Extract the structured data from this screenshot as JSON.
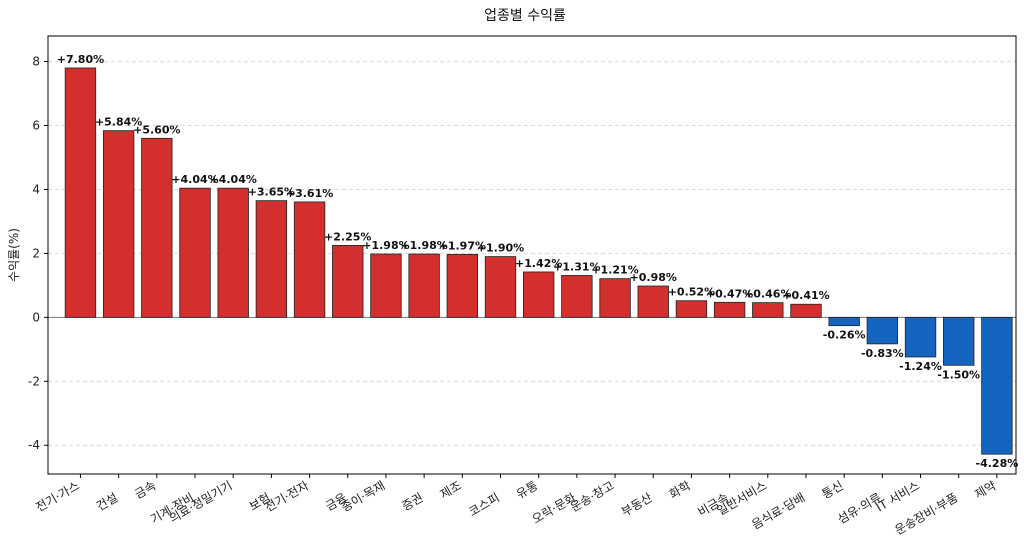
{
  "chart_data": {
    "type": "bar",
    "title": "업종별 수익률",
    "xlabel": "",
    "ylabel": "수익률(%)",
    "ylim": [
      -4.9,
      8.8
    ],
    "yticks": [
      -4,
      -2,
      0,
      2,
      4,
      6,
      8
    ],
    "grid": "horizontal dashed",
    "categories": [
      "전기·가스",
      "건설",
      "금속",
      "기계·장비",
      "의료·정밀기기",
      "보험",
      "전기·전자",
      "금융",
      "종이·목재",
      "증권",
      "제조",
      "코스피",
      "유통",
      "오락·문화",
      "운송·창고",
      "부동산",
      "화학",
      "비금속",
      "일반서비스",
      "음식료·담배",
      "통신",
      "섬유·의류",
      "IT 서비스",
      "운송장비·부품",
      "제약"
    ],
    "values": [
      7.8,
      5.84,
      5.6,
      4.04,
      4.04,
      3.65,
      3.61,
      2.25,
      1.98,
      1.98,
      1.97,
      1.9,
      1.42,
      1.31,
      1.21,
      0.98,
      0.52,
      0.47,
      0.46,
      0.41,
      -0.26,
      -0.83,
      -1.24,
      -1.5,
      -4.28
    ],
    "labels": [
      "+7.80%",
      "+5.84%",
      "+5.60%",
      "+4.04%",
      "+4.04%",
      "+3.65%",
      "+3.61%",
      "+2.25%",
      "+1.98%",
      "+1.98%",
      "+1.97%",
      "+1.90%",
      "+1.42%",
      "+1.31%",
      "+1.21%",
      "+0.98%",
      "+0.52%",
      "+0.47%",
      "+0.46%",
      "+0.41%",
      "-0.26%",
      "-0.83%",
      "-1.24%",
      "-1.50%",
      "-4.28%"
    ],
    "colors": {
      "positive": "#d32f2f",
      "negative": "#1565c0",
      "edge": "#222222"
    }
  }
}
